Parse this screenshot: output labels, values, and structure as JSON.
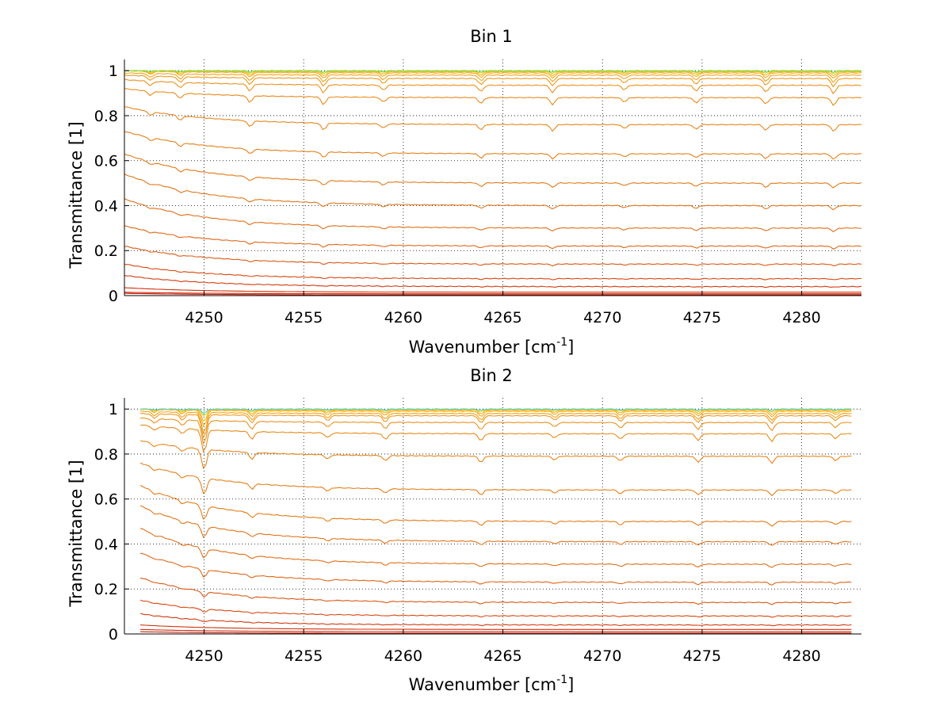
{
  "chart_data": [
    {
      "type": "line",
      "title": "Bin 1",
      "xlabel_main": "Wavenumber [cm",
      "xlabel_sup": "-1",
      "xlabel_end": "]",
      "ylabel": "Transmittance [1]",
      "xlim": [
        4246,
        4283
      ],
      "ylim": [
        0,
        1.05
      ],
      "xticks": [
        4250,
        4255,
        4260,
        4265,
        4270,
        4275,
        4280
      ],
      "yticks": [
        0,
        0.2,
        0.4,
        0.6,
        0.8,
        1
      ],
      "ytick_labels": [
        "0",
        "0.2",
        "0.4",
        "0.6",
        "0.8",
        "1"
      ],
      "grid": true,
      "grid_style": "dotted",
      "x_start": 4246,
      "x_end": 4283,
      "series": [
        {
          "color": "#c81e0a",
          "end_level": 0.003,
          "start_level": 0.01,
          "depth": 0
        },
        {
          "color": "#cc2a0c",
          "end_level": 0.008,
          "start_level": 0.015,
          "depth": 0
        },
        {
          "color": "#d0320e",
          "end_level": 0.015,
          "start_level": 0.035,
          "depth": 0
        },
        {
          "color": "#d53a10",
          "end_level": 0.04,
          "start_level": 0.09,
          "depth": 0.003
        },
        {
          "color": "#d94812",
          "end_level": 0.075,
          "start_level": 0.14,
          "depth": 0.005
        },
        {
          "color": "#dd5714",
          "end_level": 0.14,
          "start_level": 0.22,
          "depth": 0.008
        },
        {
          "color": "#e06616",
          "end_level": 0.22,
          "start_level": 0.31,
          "depth": 0.012
        },
        {
          "color": "#e26f18",
          "end_level": 0.3,
          "start_level": 0.43,
          "depth": 0.015
        },
        {
          "color": "#e37418",
          "end_level": 0.4,
          "start_level": 0.54,
          "depth": 0.018
        },
        {
          "color": "#e47a18",
          "end_level": 0.5,
          "start_level": 0.63,
          "depth": 0.022
        },
        {
          "color": "#e57f18",
          "end_level": 0.63,
          "start_level": 0.73,
          "depth": 0.025
        },
        {
          "color": "#e7851a",
          "end_level": 0.76,
          "start_level": 0.84,
          "depth": 0.03
        },
        {
          "color": "#e98a1a",
          "end_level": 0.88,
          "start_level": 0.92,
          "depth": 0.034
        },
        {
          "color": "#ec901c",
          "end_level": 0.935,
          "start_level": 0.96,
          "depth": 0.036
        },
        {
          "color": "#ef981c",
          "end_level": 0.965,
          "start_level": 0.98,
          "depth": 0.036
        },
        {
          "color": "#f3a21c",
          "end_level": 0.98,
          "start_level": 0.99,
          "depth": 0.032
        },
        {
          "color": "#f6ab1c",
          "end_level": 0.99,
          "start_level": 1.0,
          "depth": 0.025
        },
        {
          "color": "#f9b41c",
          "end_level": 0.995,
          "start_level": 1.0,
          "depth": 0.018
        },
        {
          "color": "#c8d21e",
          "end_level": 0.998,
          "start_level": 1.0,
          "depth": 0.01
        },
        {
          "color": "#7fe04a",
          "end_level": 1.0,
          "start_level": 1.0,
          "depth": 0.006
        }
      ],
      "absorption_lines": [
        4247.3,
        4248.8,
        4252.3,
        4256.0,
        4259.0,
        4263.9,
        4267.5,
        4271.1,
        4274.7,
        4278.2,
        4281.6
      ]
    },
    {
      "type": "line",
      "title": "Bin 2",
      "xlabel_main": "Wavenumber [cm",
      "xlabel_sup": "-1",
      "xlabel_end": "]",
      "ylabel": "Transmittance [1]",
      "xlim": [
        4246,
        4283
      ],
      "ylim": [
        0,
        1.05
      ],
      "xticks": [
        4250,
        4255,
        4260,
        4265,
        4270,
        4275,
        4280
      ],
      "yticks": [
        0,
        0.2,
        0.4,
        0.6,
        0.8,
        1
      ],
      "ytick_labels": [
        "0",
        "0.2",
        "0.4",
        "0.6",
        "0.8",
        "1"
      ],
      "grid": true,
      "grid_style": "dotted",
      "x_start": 4246.8,
      "x_end": 4282.5,
      "series": [
        {
          "color": "#c81e0a",
          "end_level": 0.003,
          "start_level": 0.01,
          "depth": 0
        },
        {
          "color": "#cc2a0c",
          "end_level": 0.01,
          "start_level": 0.02,
          "depth": 0
        },
        {
          "color": "#d0320e",
          "end_level": 0.02,
          "start_level": 0.04,
          "depth": 0
        },
        {
          "color": "#d53a10",
          "end_level": 0.04,
          "start_level": 0.09,
          "depth": 0.003
        },
        {
          "color": "#d94812",
          "end_level": 0.08,
          "start_level": 0.15,
          "depth": 0.005
        },
        {
          "color": "#dd5714",
          "end_level": 0.14,
          "start_level": 0.25,
          "depth": 0.008
        },
        {
          "color": "#e06616",
          "end_level": 0.23,
          "start_level": 0.36,
          "depth": 0.012
        },
        {
          "color": "#e26f18",
          "end_level": 0.31,
          "start_level": 0.47,
          "depth": 0.015
        },
        {
          "color": "#e37418",
          "end_level": 0.41,
          "start_level": 0.57,
          "depth": 0.018
        },
        {
          "color": "#e47a18",
          "end_level": 0.5,
          "start_level": 0.66,
          "depth": 0.022
        },
        {
          "color": "#e57f18",
          "end_level": 0.64,
          "start_level": 0.76,
          "depth": 0.025
        },
        {
          "color": "#e7851a",
          "end_level": 0.79,
          "start_level": 0.86,
          "depth": 0.03
        },
        {
          "color": "#e98a1a",
          "end_level": 0.89,
          "start_level": 0.93,
          "depth": 0.034
        },
        {
          "color": "#ec901c",
          "end_level": 0.94,
          "start_level": 0.96,
          "depth": 0.036
        },
        {
          "color": "#ef981c",
          "end_level": 0.97,
          "start_level": 0.98,
          "depth": 0.036
        },
        {
          "color": "#f3a21c",
          "end_level": 0.98,
          "start_level": 0.99,
          "depth": 0.032
        },
        {
          "color": "#f6ab1c",
          "end_level": 0.99,
          "start_level": 1.0,
          "depth": 0.025
        },
        {
          "color": "#f9b41c",
          "end_level": 0.995,
          "start_level": 1.0,
          "depth": 0.018
        },
        {
          "color": "#c8d21e",
          "end_level": 0.998,
          "start_level": 1.0,
          "depth": 0.01
        },
        {
          "color": "#5ad2c8",
          "end_level": 1.0,
          "start_level": 1.0,
          "depth": 0.006
        }
      ],
      "absorption_lines": [
        4247.5,
        4248.9,
        4250.0,
        4252.4,
        4256.2,
        4259.1,
        4263.9,
        4267.6,
        4270.9,
        4274.8,
        4278.5,
        4281.7
      ]
    }
  ]
}
